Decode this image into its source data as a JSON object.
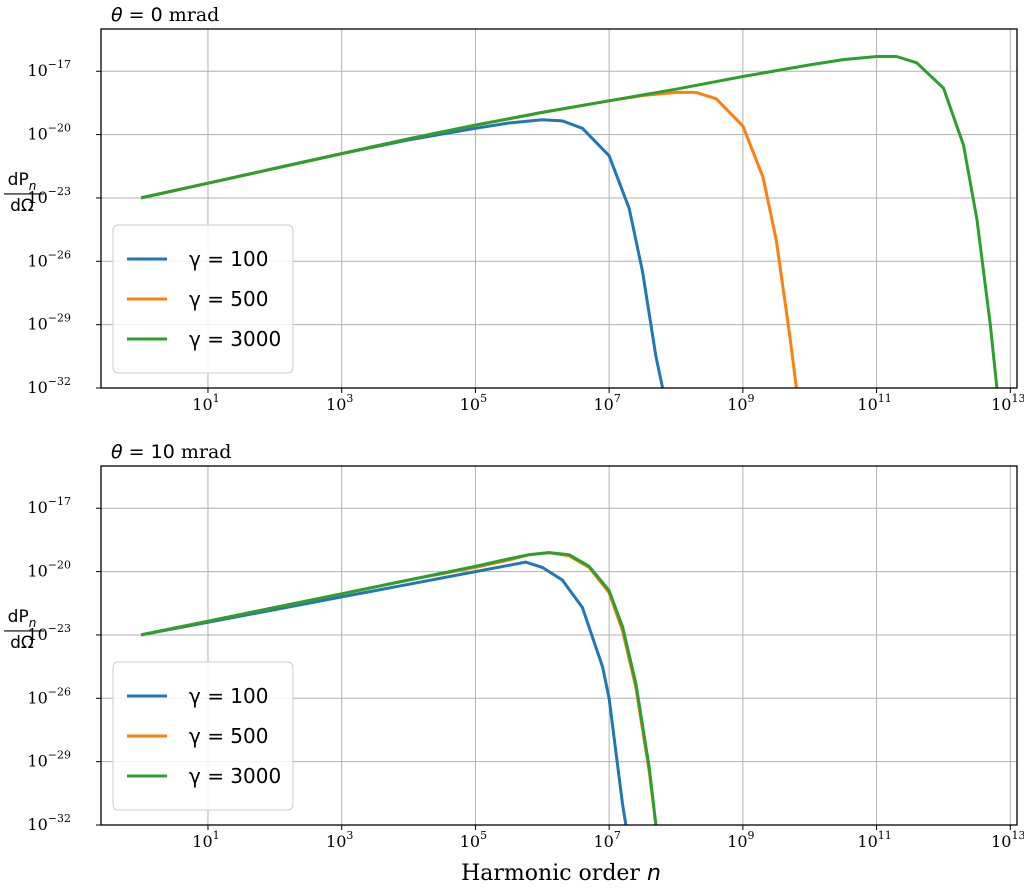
{
  "chart_data": [
    {
      "type": "line",
      "title": {
        "symbol": "θ",
        "eq": " = 0",
        "unit": " mrad"
      },
      "ylabel": {
        "num": "dP",
        "sub": "n",
        "den": "dΩ"
      },
      "xlabel": "",
      "xscale": "log",
      "yscale": "log",
      "xlim_log10": [
        -0.6,
        13.1
      ],
      "ylim_log10": [
        -32,
        -15
      ],
      "grid": true,
      "legend_position": "lower-left",
      "xticks": [
        {
          "base": "10",
          "exp": "1"
        },
        {
          "base": "10",
          "exp": "3"
        },
        {
          "base": "10",
          "exp": "5"
        },
        {
          "base": "10",
          "exp": "7"
        },
        {
          "base": "10",
          "exp": "9"
        },
        {
          "base": "10",
          "exp": "11"
        },
        {
          "base": "10",
          "exp": "13"
        }
      ],
      "yticks": [
        {
          "base": "10",
          "exp": "−17"
        },
        {
          "base": "10",
          "exp": "−20"
        },
        {
          "base": "10",
          "exp": "−23"
        },
        {
          "base": "10",
          "exp": "−26"
        },
        {
          "base": "10",
          "exp": "−29"
        },
        {
          "base": "10",
          "exp": "−32"
        }
      ],
      "series": [
        {
          "name": "γ = 100",
          "color": "#1f77b4",
          "x_log10": [
            0,
            1,
            2,
            3,
            4,
            5,
            5.5,
            6,
            6.3,
            6.6,
            7,
            7.3,
            7.5,
            7.7,
            7.8
          ],
          "y_log10": [
            -23,
            -22.3,
            -21.6,
            -20.9,
            -20.25,
            -19.7,
            -19.45,
            -19.3,
            -19.35,
            -19.7,
            -21,
            -23.5,
            -26.5,
            -30.5,
            -32
          ]
        },
        {
          "name": "γ = 500",
          "color": "#ff7f0e",
          "x_log10": [
            0,
            1,
            2,
            3,
            4,
            5,
            6,
            7,
            7.5,
            8,
            8.3,
            8.6,
            9,
            9.3,
            9.5,
            9.7,
            9.8
          ],
          "y_log10": [
            -23,
            -22.3,
            -21.6,
            -20.9,
            -20.2,
            -19.55,
            -18.95,
            -18.4,
            -18.15,
            -18.0,
            -18.0,
            -18.3,
            -19.6,
            -22,
            -25,
            -29.5,
            -32
          ]
        },
        {
          "name": "γ = 3000",
          "color": "#2ca02c",
          "x_log10": [
            0,
            1,
            2,
            3,
            4,
            5,
            6,
            7,
            8,
            9,
            10,
            10.5,
            11,
            11.3,
            11.6,
            12,
            12.3,
            12.5,
            12.7,
            12.8
          ],
          "y_log10": [
            -23,
            -22.3,
            -21.6,
            -20.9,
            -20.2,
            -19.55,
            -18.95,
            -18.4,
            -17.85,
            -17.25,
            -16.7,
            -16.45,
            -16.3,
            -16.3,
            -16.6,
            -17.8,
            -20.5,
            -24,
            -29,
            -32
          ]
        }
      ]
    },
    {
      "type": "line",
      "title": {
        "symbol": "θ",
        "eq": " = 10",
        "unit": " mrad"
      },
      "ylabel": {
        "num": "dP",
        "sub": "n",
        "den": "dΩ"
      },
      "xlabel": "Harmonic order ",
      "xlabel_symbol": "n",
      "xscale": "log",
      "yscale": "log",
      "xlim_log10": [
        -0.6,
        13.1
      ],
      "ylim_log10": [
        -32,
        -15
      ],
      "grid": true,
      "legend_position": "lower-left",
      "xticks": [
        {
          "base": "10",
          "exp": "1"
        },
        {
          "base": "10",
          "exp": "3"
        },
        {
          "base": "10",
          "exp": "5"
        },
        {
          "base": "10",
          "exp": "7"
        },
        {
          "base": "10",
          "exp": "9"
        },
        {
          "base": "10",
          "exp": "11"
        },
        {
          "base": "10",
          "exp": "13"
        }
      ],
      "yticks": [
        {
          "base": "10",
          "exp": "−17"
        },
        {
          "base": "10",
          "exp": "−20"
        },
        {
          "base": "10",
          "exp": "−23"
        },
        {
          "base": "10",
          "exp": "−26"
        },
        {
          "base": "10",
          "exp": "−29"
        },
        {
          "base": "10",
          "exp": "−32"
        }
      ],
      "series": [
        {
          "name": "γ = 100",
          "color": "#1f77b4",
          "x_log10": [
            0,
            1,
            2,
            3,
            4,
            5,
            5.5,
            5.75,
            6,
            6.3,
            6.6,
            6.9,
            7,
            7.1,
            7.2,
            7.25
          ],
          "y_log10": [
            -23,
            -22.4,
            -21.8,
            -21.2,
            -20.6,
            -20.0,
            -19.7,
            -19.55,
            -19.8,
            -20.4,
            -21.7,
            -24.5,
            -26,
            -28.5,
            -31,
            -32
          ]
        },
        {
          "name": "γ = 500",
          "color": "#ff7f0e",
          "x_log10": [
            0,
            1,
            2,
            3,
            4,
            5,
            5.5,
            5.8,
            6.1,
            6.4,
            6.7,
            7,
            7.2,
            7.4,
            7.6,
            7.7
          ],
          "y_log10": [
            -23,
            -22.35,
            -21.7,
            -21.05,
            -20.4,
            -19.8,
            -19.45,
            -19.2,
            -19.1,
            -19.25,
            -19.8,
            -21,
            -22.8,
            -25.5,
            -29.5,
            -32
          ]
        },
        {
          "name": "γ = 3000",
          "color": "#2ca02c",
          "x_log10": [
            0,
            1,
            2,
            3,
            4,
            5,
            5.5,
            5.8,
            6.1,
            6.4,
            6.7,
            7,
            7.2,
            7.4,
            7.6,
            7.7
          ],
          "y_log10": [
            -23,
            -22.35,
            -21.7,
            -21.05,
            -20.4,
            -19.75,
            -19.4,
            -19.2,
            -19.1,
            -19.2,
            -19.75,
            -20.9,
            -22.6,
            -25.3,
            -29.3,
            -32
          ]
        }
      ]
    }
  ]
}
